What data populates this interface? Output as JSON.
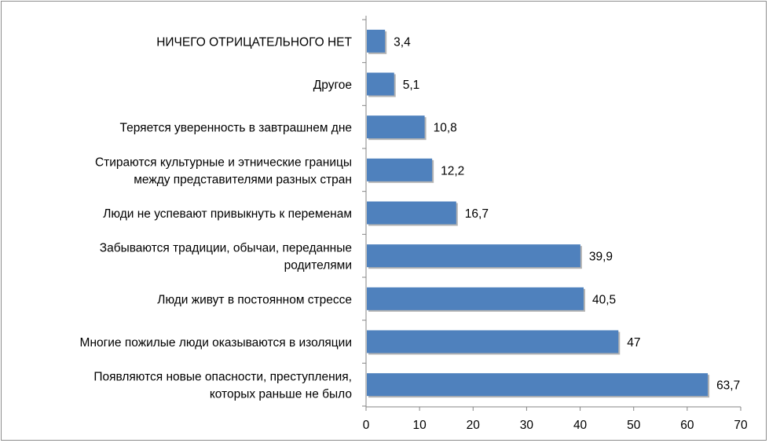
{
  "chart_data": {
    "type": "bar",
    "orientation": "horizontal",
    "title": "",
    "xlabel": "",
    "ylabel": "",
    "xlim": [
      0,
      70
    ],
    "xticks": [
      0,
      10,
      20,
      30,
      40,
      50,
      60,
      70
    ],
    "grid": false,
    "legend": "none",
    "bar_color": "#4f81bd",
    "categories": [
      [
        "НИЧЕГО ОТРИЦАТЕЛЬНОГО НЕТ"
      ],
      [
        "Другое"
      ],
      [
        "Теряется уверенность в завтрашнем дне"
      ],
      [
        "Стираются культурные и этнические границы",
        "между представителями разных стран"
      ],
      [
        "Люди не успевают привыкнуть к переменам"
      ],
      [
        "Забываются традиции, обычаи, переданные",
        "родителями"
      ],
      [
        "Люди живут в постоянном стрессе"
      ],
      [
        "Многие пожилые люди оказываются в изоляции"
      ],
      [
        "Появляются новые опасности, преступления,",
        "которых раньше не было"
      ]
    ],
    "values": [
      3.4,
      5.1,
      10.8,
      12.2,
      16.7,
      39.9,
      40.5,
      47,
      63.7
    ],
    "value_labels": [
      "3,4",
      "5,1",
      "10,8",
      "12,2",
      "16,7",
      "39,9",
      "40,5",
      "47",
      "63,7"
    ]
  }
}
